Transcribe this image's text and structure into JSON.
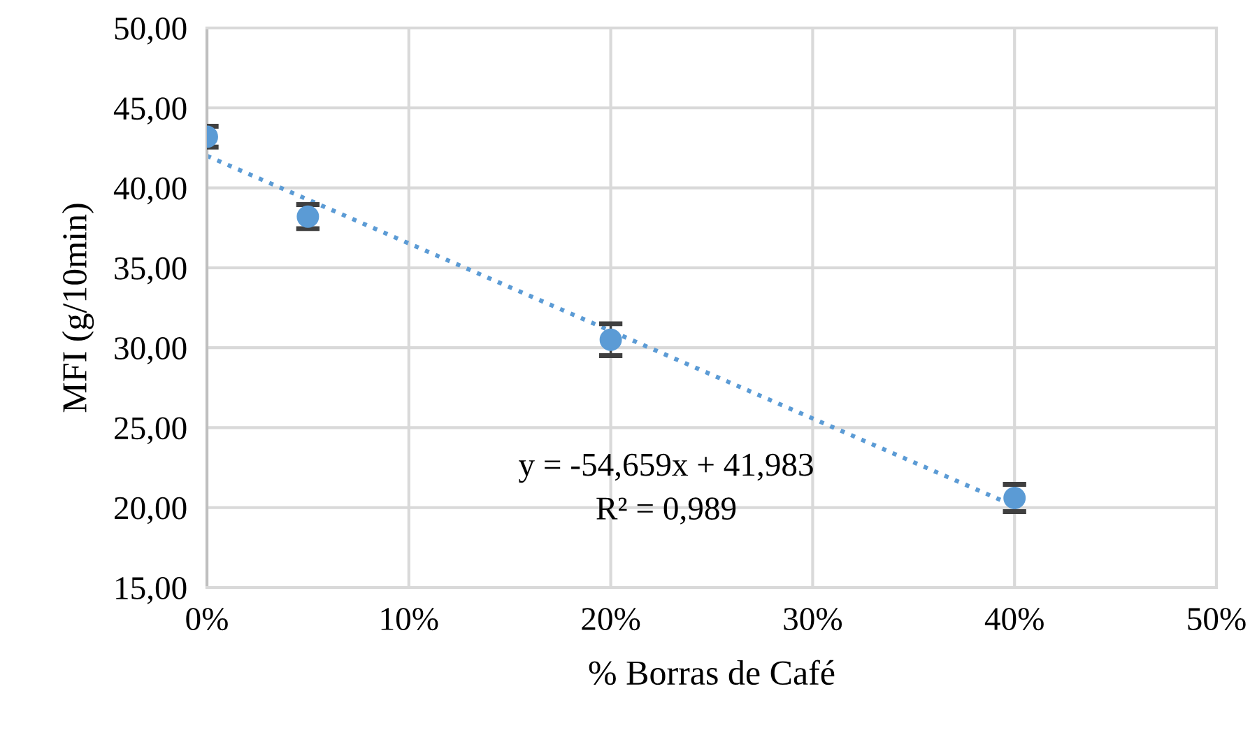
{
  "chart_data": {
    "type": "scatter",
    "xlabel": "% Borras de Café",
    "ylabel": "MFI (g/10min)",
    "xlim": [
      0,
      0.5
    ],
    "ylim": [
      15,
      50
    ],
    "xticks": [
      {
        "value": 0,
        "label": "0%"
      },
      {
        "value": 0.1,
        "label": "10%"
      },
      {
        "value": 0.2,
        "label": "20%"
      },
      {
        "value": 0.3,
        "label": "30%"
      },
      {
        "value": 0.4,
        "label": "40%"
      },
      {
        "value": 0.5,
        "label": "50%"
      }
    ],
    "yticks": [
      {
        "value": 15,
        "label": "15,00"
      },
      {
        "value": 20,
        "label": "20,00"
      },
      {
        "value": 25,
        "label": "25,00"
      },
      {
        "value": 30,
        "label": "30,00"
      },
      {
        "value": 35,
        "label": "35,00"
      },
      {
        "value": 40,
        "label": "40,00"
      },
      {
        "value": 45,
        "label": "45,00"
      },
      {
        "value": 50,
        "label": "50,00"
      }
    ],
    "grid": true,
    "series": [
      {
        "marker": "circle",
        "color": "#5b9bd5",
        "x": [
          0,
          0.05,
          0.2,
          0.4
        ],
        "values": [
          43.2,
          38.2,
          30.5,
          20.6
        ],
        "errors": [
          0.65,
          0.75,
          1.0,
          0.85
        ]
      },
      {
        "type": "line",
        "line_style": "dotted",
        "marker": "none",
        "color": "#5b9bd5",
        "x": [
          0,
          0.4
        ],
        "values": [
          42.0,
          20.1
        ]
      }
    ],
    "annotations": [
      "y = -54,659x + 41,983\nR² = 0,989"
    ]
  }
}
